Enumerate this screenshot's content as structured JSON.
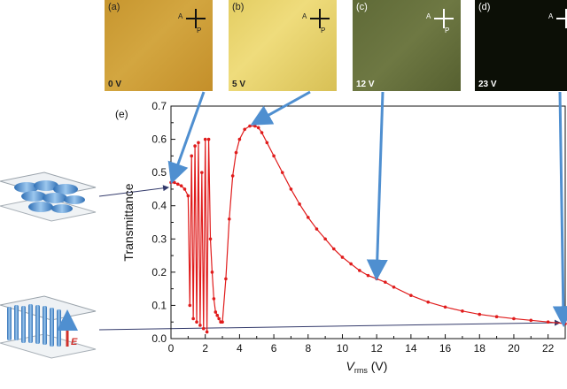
{
  "panels": [
    {
      "label": "(a)",
      "voltage": "0 V",
      "color": "#cc9b35"
    },
    {
      "label": "(b)",
      "voltage": "5 V",
      "color": "#e6d16c"
    },
    {
      "label": "(c)",
      "voltage": "12 V",
      "color": "#656f3b"
    },
    {
      "label": "(d)",
      "voltage": "23 V",
      "color": "#0c0f06"
    }
  ],
  "polarizer": {
    "analyzer": "A",
    "polarizer": "P"
  },
  "chart_data": {
    "type": "scatter",
    "panel_label": "(e)",
    "xlabel_main": "V",
    "xlabel_sub": "rms",
    "xlabel_unit": " (V)",
    "ylabel": "Transmittance",
    "xlim": [
      0,
      23
    ],
    "ylim": [
      0,
      0.7
    ],
    "xticks": [
      0,
      2,
      4,
      6,
      8,
      10,
      12,
      14,
      16,
      18,
      20,
      22
    ],
    "yticks": [
      0.0,
      0.1,
      0.2,
      0.3,
      0.4,
      0.5,
      0.6,
      0.7
    ],
    "series_color": "#e01c1c",
    "arrow_color": "#4f8fd0",
    "field_label": "E",
    "x": [
      0,
      0.2,
      0.4,
      0.6,
      0.8,
      1.0,
      1.1,
      1.2,
      1.3,
      1.4,
      1.5,
      1.6,
      1.7,
      1.8,
      1.9,
      2.0,
      2.1,
      2.2,
      2.3,
      2.4,
      2.5,
      2.6,
      2.7,
      2.8,
      2.9,
      3.0,
      3.2,
      3.4,
      3.6,
      3.8,
      4.0,
      4.3,
      4.6,
      4.9,
      5.1,
      5.3,
      5.6,
      6.0,
      6.5,
      7.0,
      7.5,
      8.0,
      8.5,
      9.0,
      9.5,
      10.0,
      10.5,
      11.0,
      11.5,
      12.0,
      12.5,
      13.0,
      14.0,
      15.0,
      16.0,
      17.0,
      18.0,
      19.0,
      20.0,
      21.0,
      22.0,
      23.0
    ],
    "y": [
      0.47,
      0.47,
      0.465,
      0.46,
      0.45,
      0.43,
      0.1,
      0.55,
      0.06,
      0.58,
      0.05,
      0.59,
      0.04,
      0.5,
      0.03,
      0.6,
      0.02,
      0.6,
      0.3,
      0.2,
      0.12,
      0.08,
      0.07,
      0.06,
      0.05,
      0.05,
      0.18,
      0.36,
      0.49,
      0.56,
      0.6,
      0.63,
      0.64,
      0.64,
      0.635,
      0.62,
      0.59,
      0.55,
      0.5,
      0.45,
      0.405,
      0.365,
      0.33,
      0.3,
      0.27,
      0.245,
      0.225,
      0.205,
      0.19,
      0.18,
      0.17,
      0.155,
      0.13,
      0.11,
      0.095,
      0.083,
      0.073,
      0.066,
      0.06,
      0.055,
      0.05,
      0.045
    ],
    "arrows_from_panels": [
      {
        "panel": "(a)",
        "x": 0.1,
        "y": 0.48
      },
      {
        "panel": "(b)",
        "x": 4.9,
        "y": 0.65
      },
      {
        "panel": "(c)",
        "x": 12.0,
        "y": 0.19
      },
      {
        "panel": "(d)",
        "x": 22.9,
        "y": 0.05
      }
    ]
  }
}
